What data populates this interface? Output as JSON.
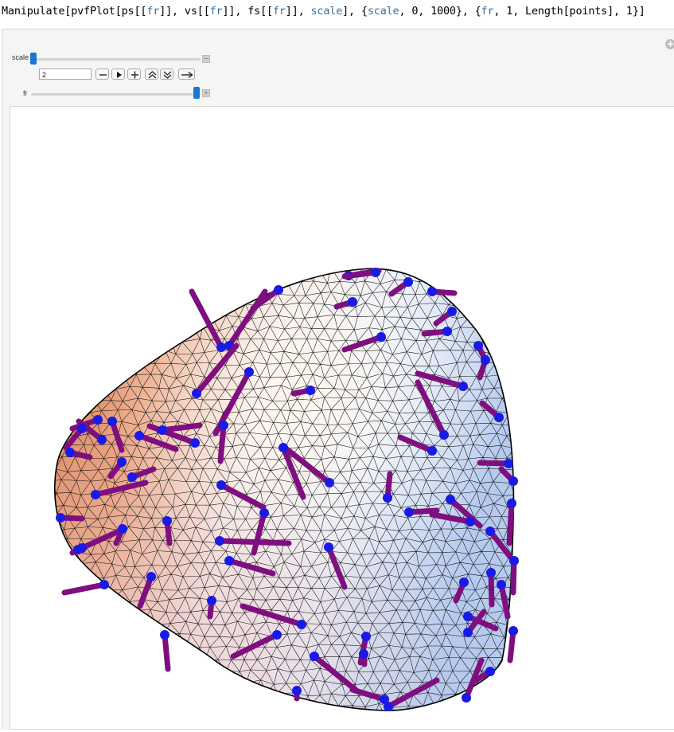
{
  "code": {
    "p1": "Manipulate[pvfPlot[ps[[",
    "fr1": "fr",
    "p2": "]], vs[[",
    "fr2": "fr",
    "p3": "]], fs[[",
    "fr3": "fr",
    "p4": "]], ",
    "scale1": "scale",
    "p5": "], {",
    "scale2": "scale",
    "p6": ", 0, 1000}, {",
    "fr4": "fr",
    "p7": ", 1, Length[points], 1}]"
  },
  "controls": {
    "scale": {
      "label": "scale",
      "value": 0,
      "min": 0,
      "max": 1000,
      "toggle": "−"
    },
    "fr": {
      "label": "fr",
      "position": 1.0,
      "value": "2",
      "toggle": "+"
    },
    "buttons": [
      "minus-icon",
      "play-icon",
      "plus-icon",
      "faster-icon",
      "slower-icon",
      "direction-icon"
    ]
  },
  "panel": {
    "add_icon": "+"
  },
  "colors": {
    "slider_thumb": "#1976d2",
    "vector": "#7f0f7f",
    "dot": "#1a1ae6",
    "mesh": "#111111",
    "warm": "#e9966e",
    "cool": "#b9cdf0"
  },
  "plot": {
    "content": "3D surface mesh with vector field"
  }
}
